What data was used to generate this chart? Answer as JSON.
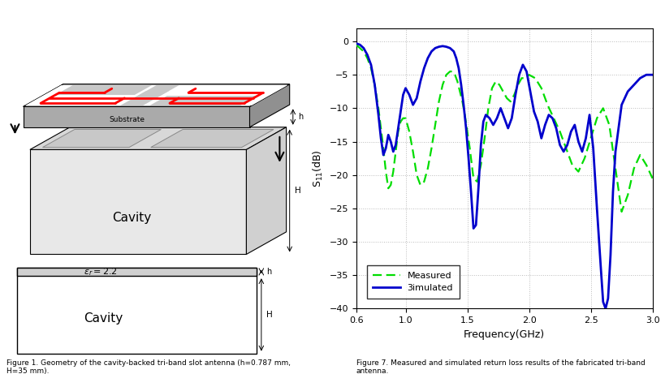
{
  "fig_width": 8.2,
  "fig_height": 4.61,
  "dpi": 100,
  "bg_color": "#ffffff",
  "plot_xlim": [
    0.6,
    3.0
  ],
  "plot_ylim": [
    -40,
    2
  ],
  "plot_yticks": [
    0,
    -5,
    -10,
    -15,
    -20,
    -25,
    -30,
    -35,
    -40
  ],
  "plot_xticks": [
    0.6,
    1.0,
    1.5,
    2.0,
    2.5,
    3.0
  ],
  "plot_xlabel": "Frequency(GHz)",
  "plot_ylabel": "S$_{11}$(dB)",
  "grid_color": "#bbbbbb",
  "measured_color": "#00dd00",
  "simulated_color": "#0000cc",
  "caption_left": "Figure 1. Geometry of the cavity-backed tri-band slot antenna (h=0.787 mm,\nH=35 mm).",
  "caption_right": "Figure 7. Measured and simulated return loss results of the fabricated tri-band\nantenna.",
  "measured_x": [
    0.6,
    0.63,
    0.66,
    0.69,
    0.72,
    0.75,
    0.78,
    0.8,
    0.82,
    0.84,
    0.86,
    0.88,
    0.9,
    0.92,
    0.94,
    0.96,
    0.98,
    1.0,
    1.03,
    1.06,
    1.09,
    1.12,
    1.15,
    1.18,
    1.21,
    1.24,
    1.27,
    1.3,
    1.33,
    1.36,
    1.38,
    1.4,
    1.42,
    1.44,
    1.46,
    1.48,
    1.5,
    1.52,
    1.55,
    1.58,
    1.61,
    1.64,
    1.67,
    1.7,
    1.73,
    1.76,
    1.79,
    1.82,
    1.85,
    1.88,
    1.91,
    1.94,
    1.97,
    2.0,
    2.05,
    2.1,
    2.15,
    2.2,
    2.25,
    2.3,
    2.35,
    2.4,
    2.45,
    2.5,
    2.55,
    2.6,
    2.65,
    2.7,
    2.75,
    2.8,
    2.85,
    2.9,
    2.95,
    3.0
  ],
  "measured_y": [
    -0.5,
    -1.0,
    -1.5,
    -2.5,
    -4.0,
    -6.5,
    -10.0,
    -13.0,
    -16.0,
    -19.5,
    -22.0,
    -21.5,
    -19.5,
    -16.5,
    -13.5,
    -12.0,
    -11.5,
    -11.5,
    -13.5,
    -16.5,
    -20.0,
    -21.5,
    -21.0,
    -19.0,
    -16.0,
    -12.5,
    -9.0,
    -6.5,
    -5.0,
    -4.5,
    -4.5,
    -5.0,
    -6.0,
    -7.5,
    -9.0,
    -11.0,
    -13.5,
    -16.0,
    -20.5,
    -21.0,
    -18.5,
    -14.5,
    -10.0,
    -7.0,
    -6.0,
    -6.5,
    -7.5,
    -8.5,
    -9.0,
    -8.0,
    -6.5,
    -5.5,
    -5.5,
    -5.0,
    -5.5,
    -7.0,
    -9.5,
    -11.5,
    -13.5,
    -16.0,
    -18.5,
    -19.5,
    -17.5,
    -14.5,
    -11.5,
    -10.0,
    -12.5,
    -19.0,
    -25.5,
    -23.0,
    -19.0,
    -17.0,
    -18.5,
    -20.5
  ],
  "simulated_x": [
    0.6,
    0.63,
    0.66,
    0.69,
    0.72,
    0.75,
    0.78,
    0.8,
    0.82,
    0.84,
    0.86,
    0.88,
    0.9,
    0.92,
    0.94,
    0.96,
    0.98,
    1.0,
    1.03,
    1.06,
    1.09,
    1.12,
    1.15,
    1.18,
    1.21,
    1.24,
    1.27,
    1.3,
    1.33,
    1.36,
    1.39,
    1.41,
    1.43,
    1.45,
    1.47,
    1.49,
    1.51,
    1.53,
    1.55,
    1.57,
    1.59,
    1.61,
    1.63,
    1.65,
    1.68,
    1.71,
    1.74,
    1.77,
    1.8,
    1.83,
    1.86,
    1.89,
    1.92,
    1.95,
    1.98,
    2.01,
    2.04,
    2.07,
    2.1,
    2.13,
    2.16,
    2.19,
    2.22,
    2.25,
    2.28,
    2.31,
    2.34,
    2.37,
    2.4,
    2.43,
    2.46,
    2.49,
    2.52,
    2.55,
    2.58,
    2.6,
    2.62,
    2.64,
    2.66,
    2.68,
    2.7,
    2.75,
    2.8,
    2.85,
    2.9,
    2.95,
    3.0
  ],
  "simulated_y": [
    -0.3,
    -0.5,
    -1.0,
    -2.0,
    -3.5,
    -6.5,
    -11.0,
    -14.5,
    -17.0,
    -16.0,
    -14.0,
    -15.0,
    -16.5,
    -15.5,
    -13.0,
    -10.5,
    -8.0,
    -7.0,
    -8.0,
    -9.5,
    -8.5,
    -6.0,
    -4.0,
    -2.5,
    -1.5,
    -1.0,
    -0.8,
    -0.7,
    -0.8,
    -1.0,
    -1.5,
    -2.5,
    -4.0,
    -6.5,
    -9.5,
    -13.0,
    -17.5,
    -22.5,
    -28.0,
    -27.5,
    -22.0,
    -15.5,
    -12.0,
    -11.0,
    -11.5,
    -12.5,
    -11.5,
    -10.0,
    -11.5,
    -13.0,
    -11.5,
    -8.0,
    -5.0,
    -3.5,
    -4.5,
    -7.5,
    -10.5,
    -12.0,
    -14.5,
    -12.5,
    -11.0,
    -11.5,
    -13.0,
    -15.5,
    -16.5,
    -15.5,
    -13.5,
    -12.5,
    -15.0,
    -16.5,
    -14.5,
    -11.0,
    -16.0,
    -25.0,
    -33.5,
    -39.0,
    -40.0,
    -38.5,
    -32.0,
    -22.5,
    -16.5,
    -9.5,
    -7.5,
    -6.5,
    -5.5,
    -5.0,
    -5.0
  ]
}
